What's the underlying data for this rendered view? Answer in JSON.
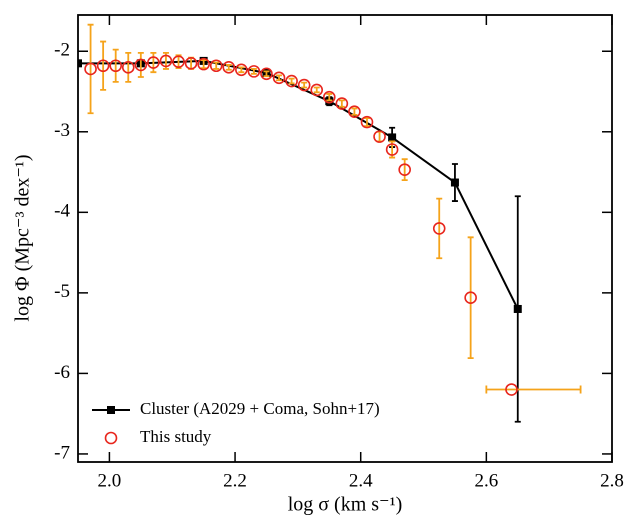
{
  "chart_data": {
    "type": "errorbar",
    "x_label": "log σ (km s⁻¹)",
    "y_label": "log Φ (Mpc⁻³ dex⁻¹)",
    "xlim": [
      1.95,
      2.8
    ],
    "ylim": [
      -7.1,
      -1.55
    ],
    "xticks": [
      {
        "value": 2,
        "label": "2.0"
      },
      {
        "value": 2.2,
        "label": "2.2"
      },
      {
        "value": 2.4,
        "label": "2.4"
      },
      {
        "value": 2.6,
        "label": "2.6"
      },
      {
        "value": 2.8,
        "label": "2.8"
      }
    ],
    "yticks": [
      -7,
      -6,
      -5,
      -4,
      -3,
      -2
    ],
    "legend": "lower left",
    "series": [
      {
        "name": "Cluster (A2029 + Coma, Sohn+17)",
        "color": "#000000",
        "marker": "square",
        "line": true,
        "x": [
          1.95,
          2.05,
          2.15,
          2.25,
          2.35,
          2.45,
          2.55,
          2.65
        ],
        "values": [
          -2.15,
          -2.15,
          -2.12,
          -2.27,
          -2.62,
          -3.07,
          -3.63,
          -5.2
        ],
        "errors": [
          0.02,
          0.03,
          0.03,
          0.03,
          0.05,
          0.12,
          0.23,
          1.4
        ],
        "error_color": "#000000"
      },
      {
        "name": "This study",
        "color": "#e8261d",
        "marker": "circle",
        "line": false,
        "x": [
          1.97,
          1.99,
          2.01,
          2.03,
          2.05,
          2.07,
          2.09,
          2.11,
          2.13,
          2.15,
          2.17,
          2.19,
          2.21,
          2.23,
          2.25,
          2.27,
          2.29,
          2.31,
          2.33,
          2.35,
          2.37,
          2.39,
          2.41,
          2.43,
          2.45,
          2.47,
          2.525,
          2.575,
          2.64
        ],
        "values": [
          -2.22,
          -2.18,
          -2.18,
          -2.2,
          -2.17,
          -2.14,
          -2.12,
          -2.13,
          -2.15,
          -2.16,
          -2.18,
          -2.2,
          -2.23,
          -2.25,
          -2.28,
          -2.33,
          -2.37,
          -2.42,
          -2.48,
          -2.57,
          -2.65,
          -2.75,
          -2.88,
          -3.06,
          -3.22,
          -3.47,
          -4.2,
          -5.06,
          -6.2
        ],
        "errors": [
          0.55,
          0.3,
          0.2,
          0.18,
          0.15,
          0.12,
          0.1,
          0.08,
          0.07,
          0.05,
          0.04,
          0.03,
          0.03,
          0.03,
          0.03,
          0.03,
          0.03,
          0.03,
          0.03,
          0.04,
          0.04,
          0.04,
          0.05,
          0.06,
          0.1,
          0.13,
          0.37,
          0.75,
          null
        ],
        "x_errors": [
          null,
          null,
          null,
          null,
          null,
          null,
          null,
          null,
          null,
          null,
          null,
          null,
          null,
          null,
          null,
          null,
          null,
          null,
          null,
          null,
          null,
          null,
          null,
          null,
          null,
          null,
          null,
          null,
          [
            0.04,
            0.11
          ]
        ],
        "error_color": "#f5a31a"
      }
    ]
  }
}
